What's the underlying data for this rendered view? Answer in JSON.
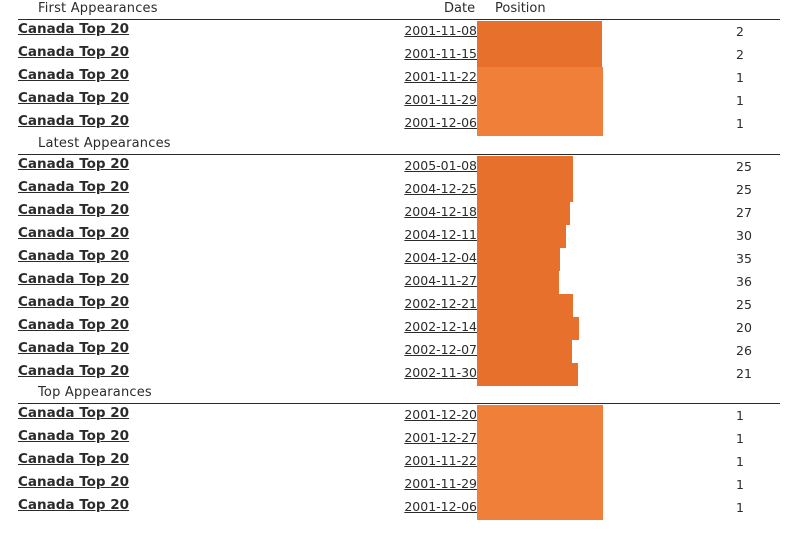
{
  "colors": {
    "bar": "#f07f3a",
    "bar_dark": "#e8702d"
  },
  "columns": {
    "date": "Date",
    "position": "Position"
  },
  "sections": [
    {
      "title": "First Appearances",
      "rows": [
        {
          "chart": "Canada Top 20",
          "date": "2001-11-08",
          "position": "2"
        },
        {
          "chart": "Canada Top 20",
          "date": "2001-11-15",
          "position": "2"
        },
        {
          "chart": "Canada Top 20",
          "date": "2001-11-22",
          "position": "1"
        },
        {
          "chart": "Canada Top 20",
          "date": "2001-11-29",
          "position": "1"
        },
        {
          "chart": "Canada Top 20",
          "date": "2001-12-06",
          "position": "1"
        }
      ]
    },
    {
      "title": "Latest Appearances",
      "rows": [
        {
          "chart": "Canada Top 20",
          "date": "2005-01-08",
          "position": "25"
        },
        {
          "chart": "Canada Top 20",
          "date": "2004-12-25",
          "position": "25"
        },
        {
          "chart": "Canada Top 20",
          "date": "2004-12-18",
          "position": "27"
        },
        {
          "chart": "Canada Top 20",
          "date": "2004-12-11",
          "position": "30"
        },
        {
          "chart": "Canada Top 20",
          "date": "2004-12-04",
          "position": "35"
        },
        {
          "chart": "Canada Top 20",
          "date": "2004-11-27",
          "position": "36"
        },
        {
          "chart": "Canada Top 20",
          "date": "2002-12-21",
          "position": "25"
        },
        {
          "chart": "Canada Top 20",
          "date": "2002-12-14",
          "position": "20"
        },
        {
          "chart": "Canada Top 20",
          "date": "2002-12-07",
          "position": "26"
        },
        {
          "chart": "Canada Top 20",
          "date": "2002-11-30",
          "position": "21"
        }
      ]
    },
    {
      "title": "Top Appearances",
      "rows": [
        {
          "chart": "Canada Top 20",
          "date": "2001-12-20",
          "position": "1"
        },
        {
          "chart": "Canada Top 20",
          "date": "2001-12-27",
          "position": "1"
        },
        {
          "chart": "Canada Top 20",
          "date": "2001-11-22",
          "position": "1"
        },
        {
          "chart": "Canada Top 20",
          "date": "2001-11-29",
          "position": "1"
        },
        {
          "chart": "Canada Top 20",
          "date": "2001-12-06",
          "position": "1"
        }
      ]
    }
  ]
}
